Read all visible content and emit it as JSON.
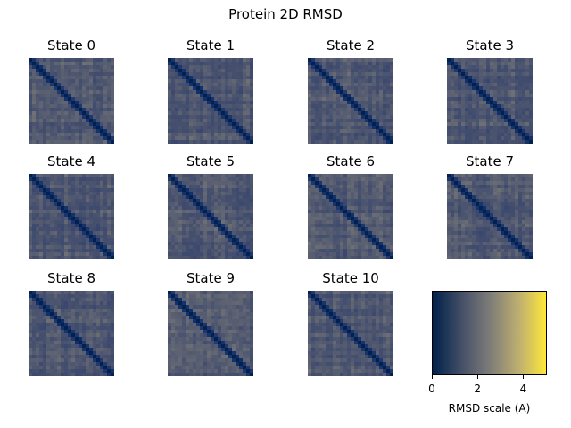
{
  "chart_data": {
    "type": "heatmap",
    "title": "Protein 2D RMSD",
    "panels": [
      {
        "name": "State 0",
        "size": 24,
        "seed": 3
      },
      {
        "name": "State 1",
        "size": 24,
        "seed": 7
      },
      {
        "name": "State 2",
        "size": 24,
        "seed": 11
      },
      {
        "name": "State 3",
        "size": 24,
        "seed": 13
      },
      {
        "name": "State 4",
        "size": 24,
        "seed": 17
      },
      {
        "name": "State 5",
        "size": 24,
        "seed": 19
      },
      {
        "name": "State 6",
        "size": 24,
        "seed": 23
      },
      {
        "name": "State 7",
        "size": 24,
        "seed": 29
      },
      {
        "name": "State 8",
        "size": 24,
        "seed": 31
      },
      {
        "name": "State 9",
        "size": 24,
        "seed": 37
      },
      {
        "name": "State 10",
        "size": 24,
        "seed": 41
      }
    ],
    "colormap": "cividis",
    "colorbar": {
      "label": "RMSD scale (A)",
      "range": [
        0,
        5
      ],
      "ticks": [
        0,
        2,
        4
      ]
    }
  }
}
